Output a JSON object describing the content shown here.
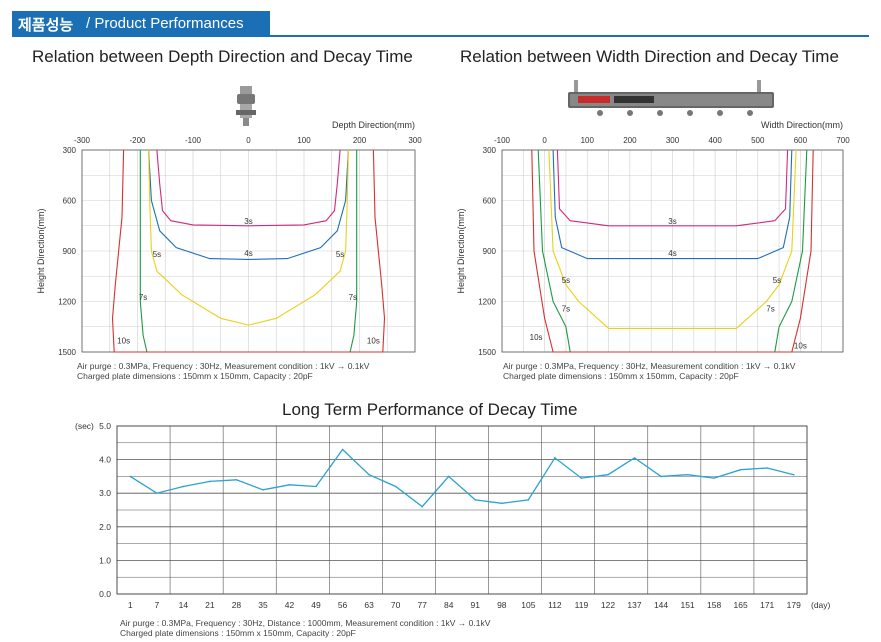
{
  "header": {
    "title_kr": "제품성능",
    "title_en": "/ Product Performances"
  },
  "colors": {
    "header_bg": "#1a6fb5",
    "c3s": "#d4287f",
    "c4s": "#1f6fb8",
    "c5s": "#e8d11a",
    "c7s": "#1a9a44",
    "c10s": "#d63030",
    "line": "#2aa2d2"
  },
  "chart_data": [
    {
      "type": "line",
      "title": "Relation between Depth Direction and Decay Time",
      "xlabel": "Depth Direction(mm)",
      "ylabel": "Height Direction(mm)",
      "x_ticks": [
        -300,
        -200,
        -100,
        0,
        100,
        200,
        300
      ],
      "y_ticks": [
        300,
        600,
        900,
        1200,
        1500
      ],
      "xlim": [
        -300,
        300
      ],
      "ylim": [
        300,
        1500
      ],
      "series": [
        {
          "name": "3s",
          "label_at": [
            0,
            740
          ],
          "points": [
            [
              -165,
              300
            ],
            [
              -160,
              500
            ],
            [
              -155,
              660
            ],
            [
              -140,
              720
            ],
            [
              -100,
              745
            ],
            [
              0,
              750
            ],
            [
              100,
              745
            ],
            [
              140,
              720
            ],
            [
              155,
              660
            ],
            [
              160,
              500
            ],
            [
              165,
              300
            ]
          ]
        },
        {
          "name": "4s",
          "label_at": [
            0,
            930
          ],
          "points": [
            [
              -180,
              300
            ],
            [
              -175,
              600
            ],
            [
              -160,
              780
            ],
            [
              -130,
              880
            ],
            [
              -70,
              945
            ],
            [
              0,
              950
            ],
            [
              70,
              945
            ],
            [
              130,
              880
            ],
            [
              160,
              780
            ],
            [
              175,
              600
            ],
            [
              180,
              300
            ]
          ]
        },
        {
          "name": "5s",
          "label_at": [
            -165,
            935
          ],
          "points": [
            [
              -180,
              300
            ],
            [
              -178,
              600
            ],
            [
              -175,
              900
            ],
            [
              -165,
              1020
            ],
            [
              -120,
              1160
            ],
            [
              -50,
              1300
            ],
            [
              0,
              1340
            ],
            [
              50,
              1300
            ],
            [
              120,
              1160
            ],
            [
              165,
              1020
            ],
            [
              175,
              900
            ],
            [
              178,
              600
            ],
            [
              180,
              300
            ]
          ]
        },
        {
          "name": "7s",
          "label_at": [
            -190,
            1190
          ],
          "points": [
            [
              -195,
              300
            ],
            [
              -195,
              800
            ],
            [
              -195,
              1200
            ],
            [
              -190,
              1400
            ],
            [
              -183,
              1500
            ],
            [
              183,
              1500
            ],
            [
              190,
              1400
            ],
            [
              195,
              1200
            ],
            [
              195,
              800
            ],
            [
              195,
              300
            ]
          ]
        },
        {
          "name": "10s",
          "label_at": [
            -225,
            1450
          ],
          "points": [
            [
              -225,
              300
            ],
            [
              -228,
              700
            ],
            [
              -240,
              1100
            ],
            [
              -245,
              1300
            ],
            [
              -242,
              1500
            ],
            [
              242,
              1500
            ],
            [
              245,
              1300
            ],
            [
              240,
              1100
            ],
            [
              228,
              700
            ],
            [
              225,
              300
            ]
          ]
        }
      ],
      "extra_labels": [
        {
          "text": "5s",
          "at": [
            165,
            935
          ]
        },
        {
          "text": "7s",
          "at": [
            188,
            1190
          ]
        },
        {
          "text": "10s",
          "at": [
            225,
            1450
          ]
        }
      ],
      "notes": [
        "Air purge : 0.3MPa, Frequency : 30Hz, Measurement condition : 1kV → 0.1kV",
        "Charged plate dimensions : 150mm x 150mm, Capacity : 20pF"
      ]
    },
    {
      "type": "line",
      "title": "Relation between Width Direction and Decay Time",
      "xlabel": "Width Direction(mm)",
      "ylabel": "Height Direction(mm)",
      "x_ticks": [
        -100,
        0,
        100,
        200,
        300,
        400,
        500,
        600,
        700
      ],
      "y_ticks": [
        300,
        600,
        900,
        1200,
        1500
      ],
      "xlim": [
        -100,
        700
      ],
      "ylim": [
        300,
        1500
      ],
      "series": [
        {
          "name": "3s",
          "label_at": [
            300,
            740
          ],
          "points": [
            [
              30,
              300
            ],
            [
              35,
              650
            ],
            [
              60,
              720
            ],
            [
              150,
              750
            ],
            [
              450,
              750
            ],
            [
              540,
              720
            ],
            [
              565,
              650
            ],
            [
              570,
              300
            ]
          ]
        },
        {
          "name": "4s",
          "label_at": [
            300,
            930
          ],
          "points": [
            [
              20,
              300
            ],
            [
              25,
              700
            ],
            [
              40,
              880
            ],
            [
              100,
              945
            ],
            [
              500,
              945
            ],
            [
              560,
              880
            ],
            [
              575,
              700
            ],
            [
              580,
              300
            ]
          ]
        },
        {
          "name": "5s",
          "label_at": [
            50,
            1090
          ],
          "points": [
            [
              10,
              300
            ],
            [
              20,
              900
            ],
            [
              50,
              1100
            ],
            [
              80,
              1200
            ],
            [
              150,
              1360
            ],
            [
              450,
              1360
            ],
            [
              520,
              1200
            ],
            [
              550,
              1100
            ],
            [
              580,
              900
            ],
            [
              590,
              300
            ]
          ]
        },
        {
          "name": "7s",
          "label_at": [
            50,
            1260
          ],
          "points": [
            [
              -15,
              300
            ],
            [
              -5,
              900
            ],
            [
              20,
              1200
            ],
            [
              50,
              1350
            ],
            [
              60,
              1500
            ],
            [
              540,
              1500
            ],
            [
              550,
              1350
            ],
            [
              580,
              1200
            ],
            [
              605,
              900
            ],
            [
              615,
              300
            ]
          ]
        },
        {
          "name": "10s",
          "label_at": [
            -20,
            1430
          ],
          "points": [
            [
              -30,
              300
            ],
            [
              -25,
              900
            ],
            [
              0,
              1300
            ],
            [
              20,
              1500
            ],
            [
              580,
              1500
            ],
            [
              600,
              1300
            ],
            [
              625,
              900
            ],
            [
              630,
              300
            ]
          ]
        }
      ],
      "extra_labels": [
        {
          "text": "5s",
          "at": [
            545,
            1090
          ]
        },
        {
          "text": "7s",
          "at": [
            530,
            1260
          ]
        },
        {
          "text": "10s",
          "at": [
            600,
            1480
          ]
        }
      ],
      "notes": [
        "Air purge : 0.3MPa, Frequency : 30Hz, Measurement condition : 1kV → 0.1kV",
        "Charged plate dimensions : 150mm x 150mm, Capacity : 20pF"
      ]
    },
    {
      "type": "line",
      "title": "Long Term Performance of Decay Time",
      "xlabel": "(day)",
      "ylabel": "(sec)",
      "categories": [
        "1",
        "7",
        "14",
        "21",
        "28",
        "35",
        "42",
        "49",
        "56",
        "63",
        "70",
        "77",
        "84",
        "91",
        "98",
        "105",
        "112",
        "119",
        "122",
        "137",
        "144",
        "151",
        "158",
        "165",
        "171",
        "179"
      ],
      "values": [
        3.5,
        3.0,
        3.2,
        3.35,
        3.4,
        3.1,
        3.25,
        3.2,
        4.3,
        3.55,
        3.2,
        2.6,
        3.5,
        2.8,
        2.7,
        2.8,
        4.05,
        3.45,
        3.55,
        4.05,
        3.5,
        3.55,
        3.45,
        3.7,
        3.75,
        3.55
      ],
      "y_ticks": [
        "5.0",
        "4.0",
        "3.0",
        "2.0",
        "1.0",
        "0.0"
      ],
      "ylim": [
        0,
        5
      ],
      "notes": [
        "Air purge : 0.3MPa, Frequency : 30Hz, Distance : 1000mm, Measurement condition : 1kV → 0.1kV",
        "Charged plate dimensions : 150mm x 150mm, Capacity : 20pF"
      ]
    }
  ]
}
